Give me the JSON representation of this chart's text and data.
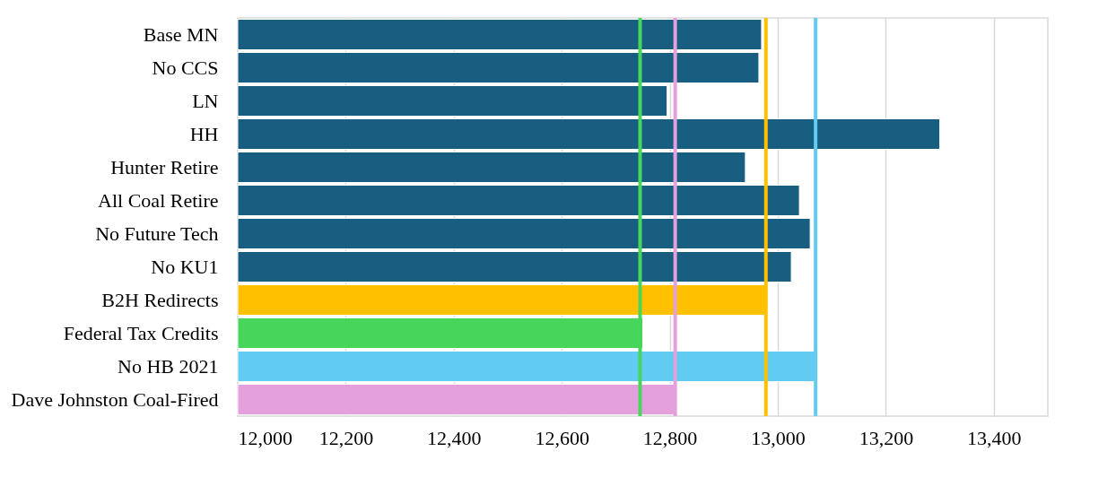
{
  "chart_data": {
    "type": "bar",
    "orientation": "horizontal",
    "categories": [
      "Base MN",
      "No CCS",
      "LN",
      "HH",
      "Hunter Retire",
      "All Coal Retire",
      "No Future Tech",
      "No KU1",
      "B2H Redirects",
      "Federal Tax Credits",
      "No HB 2021",
      "Dave Johnston Coal-Fired"
    ],
    "values": [
      12970,
      12965,
      12795,
      13300,
      12940,
      13040,
      13060,
      13025,
      12980,
      12750,
      13070,
      12810
    ],
    "colors": [
      "#175e80",
      "#175e80",
      "#175e80",
      "#175e80",
      "#175e80",
      "#175e80",
      "#175e80",
      "#175e80",
      "#ffc000",
      "#47d65b",
      "#62cbf2",
      "#e3a0dd"
    ],
    "xlim": [
      12000,
      13500
    ],
    "xticks": [
      {
        "value": 12000,
        "label": "12,000"
      },
      {
        "value": 12200,
        "label": "12,200"
      },
      {
        "value": 12400,
        "label": "12,400"
      },
      {
        "value": 12600,
        "label": "12,600"
      },
      {
        "value": 12800,
        "label": "12,800"
      },
      {
        "value": 13000,
        "label": "13,000"
      },
      {
        "value": 13200,
        "label": "13,200"
      },
      {
        "value": 13400,
        "label": "13,400"
      }
    ],
    "grid": "x",
    "ref_lines": [
      {
        "axis": "x",
        "value": 12745,
        "color": "#47d65b"
      },
      {
        "axis": "x",
        "value": 12810,
        "color": "#e3a0dd"
      },
      {
        "axis": "x",
        "value": 12978,
        "color": "#ffc000"
      },
      {
        "axis": "x",
        "value": 13070,
        "color": "#62cbf2"
      }
    ]
  }
}
